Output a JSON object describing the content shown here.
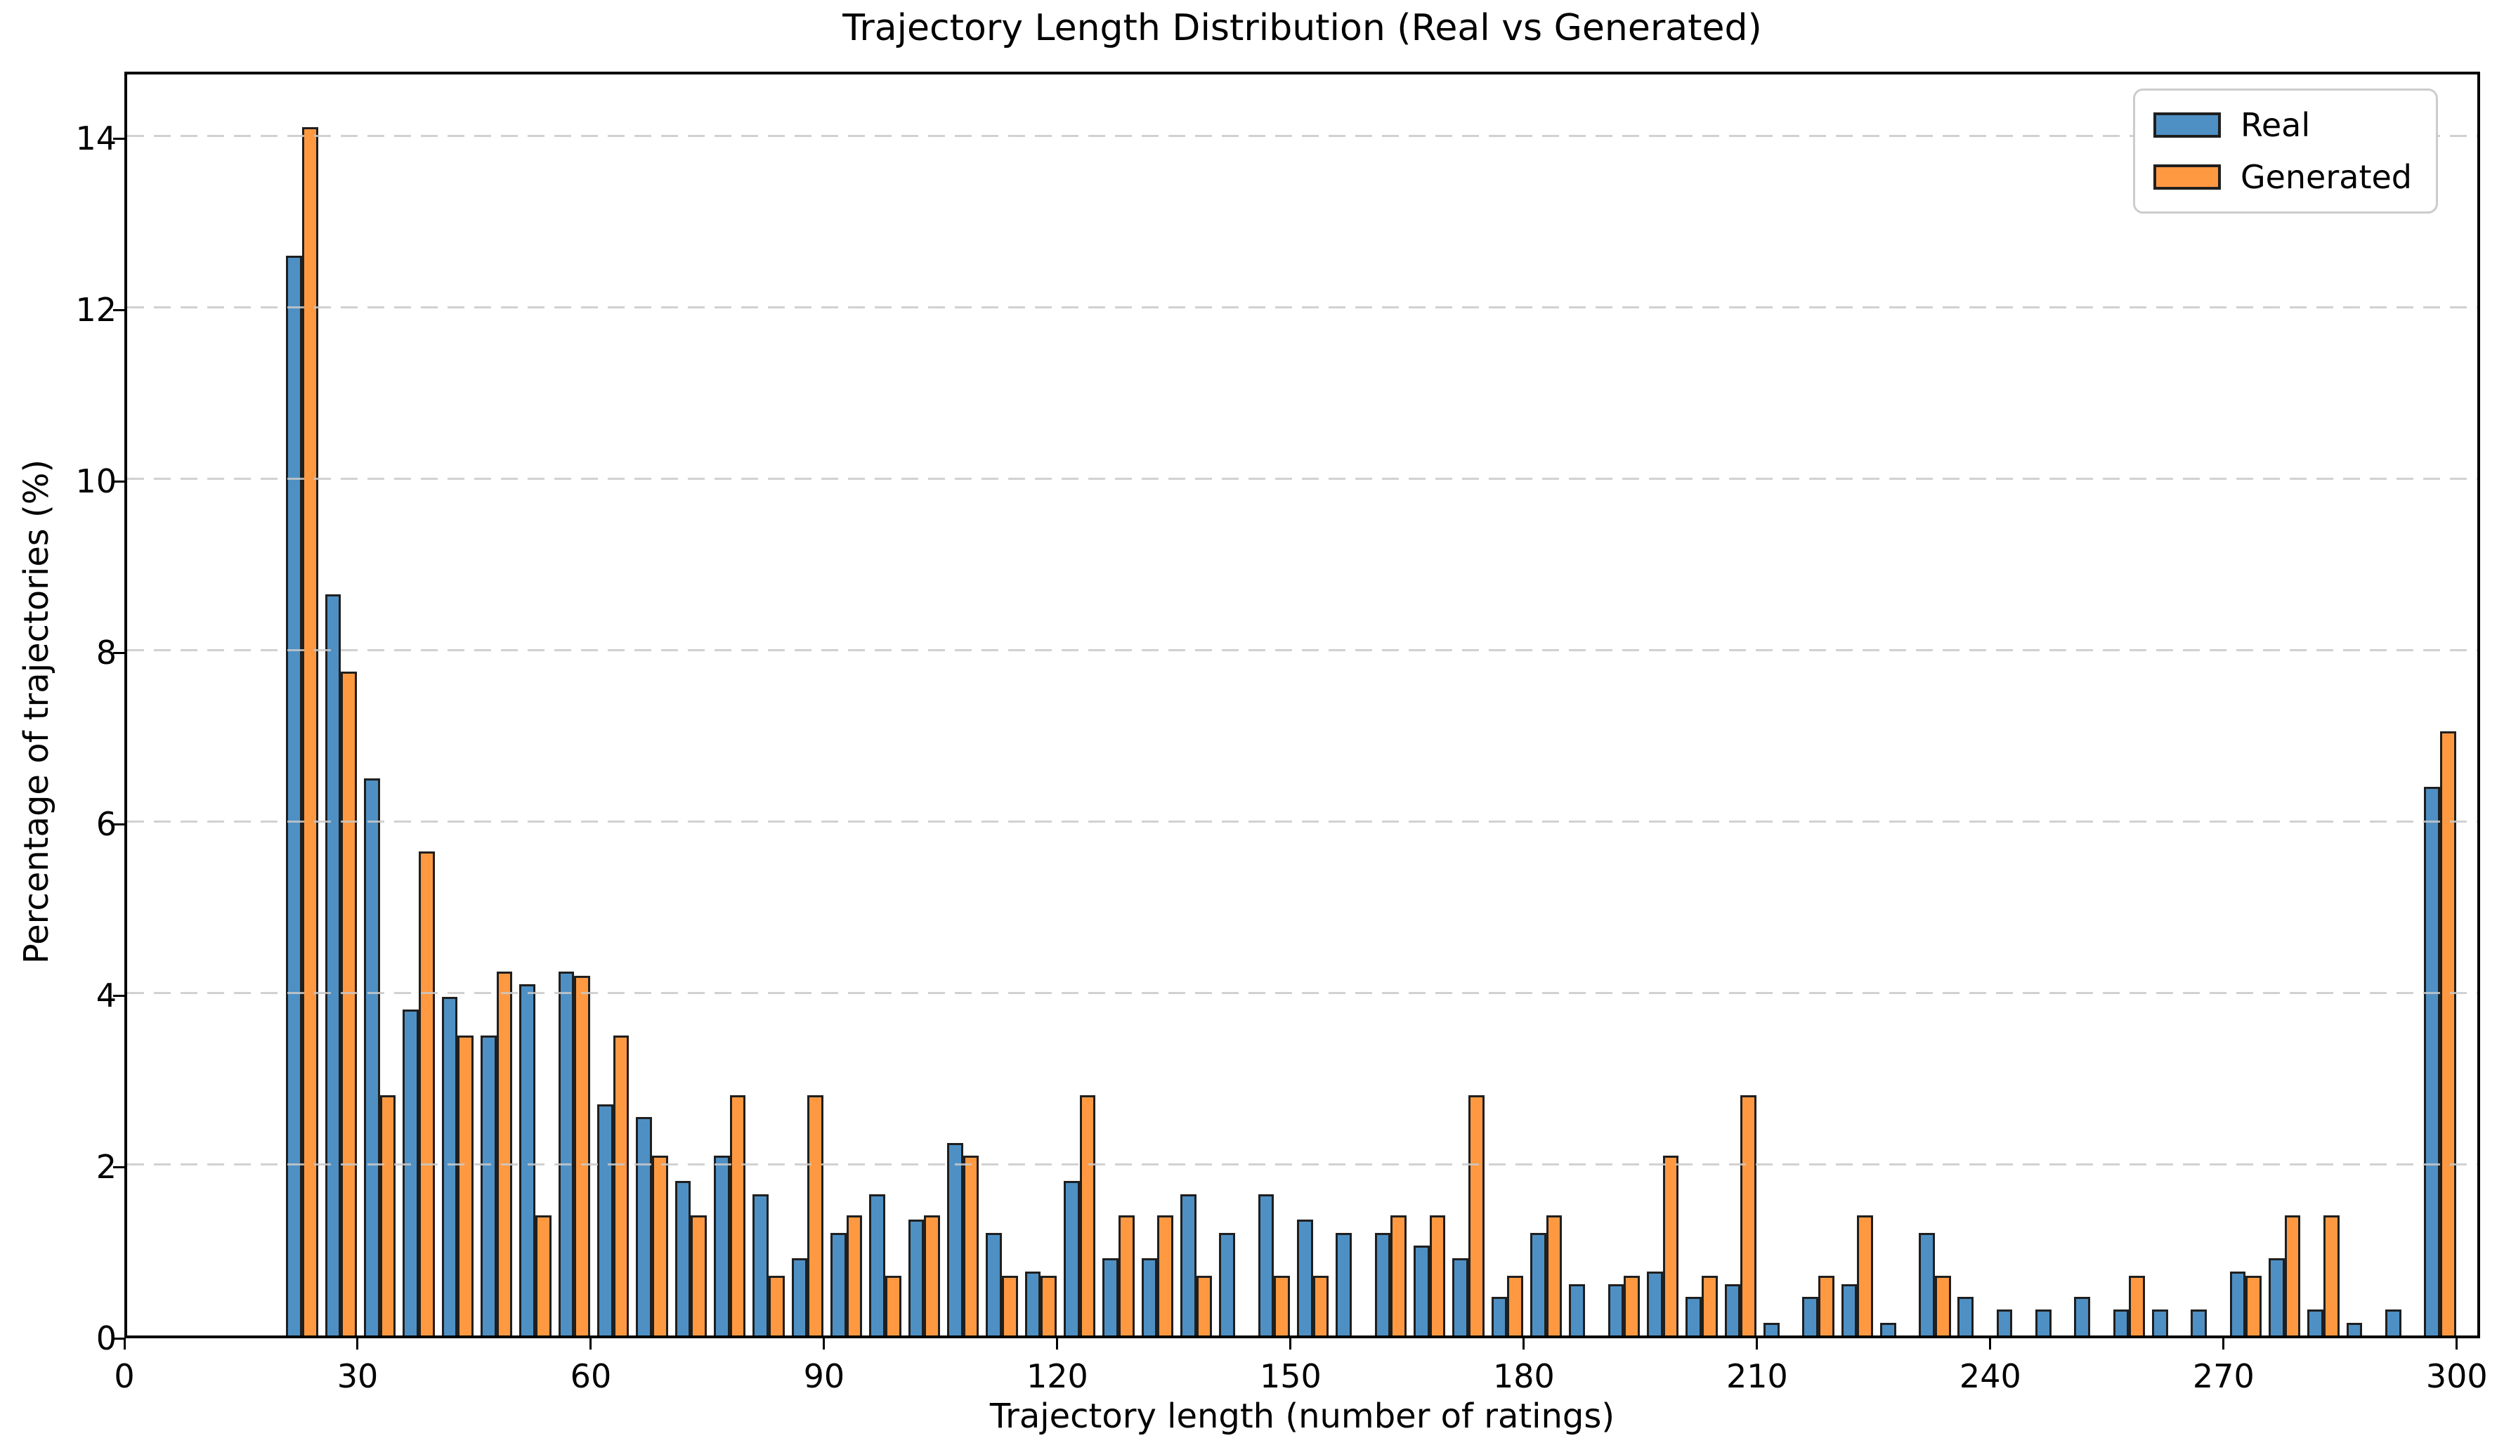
{
  "title": "Trajectory Length Distribution (Real vs Generated)",
  "xlabel": "Trajectory length (number of ratings)",
  "ylabel": "Percentage of trajectories (%)",
  "legend": [
    {
      "label": "Real",
      "color": "#4e90c4"
    },
    {
      "label": "Generated",
      "color": "#ff9941"
    }
  ],
  "colors": {
    "real": "#4e90c4",
    "generated": "#ff9941",
    "bar_edge": "#1f1f1f",
    "grid": "#c9c9c9",
    "spine": "#000000"
  },
  "chart_data": {
    "type": "bar",
    "subtype": "grouped-histogram",
    "bin_width": 5,
    "bin_starts": [
      20,
      25,
      30,
      35,
      40,
      45,
      50,
      55,
      60,
      65,
      70,
      75,
      80,
      85,
      90,
      95,
      100,
      105,
      110,
      115,
      120,
      125,
      130,
      135,
      140,
      145,
      150,
      155,
      160,
      165,
      170,
      175,
      180,
      185,
      190,
      195,
      200,
      205,
      210,
      215,
      220,
      225,
      230,
      235,
      240,
      245,
      250,
      255,
      260,
      265,
      270,
      275,
      280,
      285,
      290,
      295
    ],
    "series": [
      {
        "name": "Real",
        "values": [
          12.6,
          8.65,
          6.5,
          3.8,
          3.95,
          3.5,
          4.1,
          4.25,
          2.7,
          2.55,
          1.8,
          2.1,
          1.65,
          0.9,
          1.2,
          1.65,
          1.35,
          2.25,
          1.2,
          0.75,
          1.8,
          0.9,
          0.9,
          1.65,
          1.2,
          1.65,
          1.35,
          1.2,
          1.2,
          1.05,
          0.9,
          0.45,
          1.2,
          0.6,
          0.6,
          0.75,
          0.45,
          0.6,
          0.15,
          0.45,
          0.6,
          0.15,
          1.2,
          0.45,
          0.3,
          0.3,
          0.45,
          0.3,
          0.3,
          0.3,
          0.75,
          0.9,
          0.3,
          0.15,
          0.3,
          6.4
        ]
      },
      {
        "name": "Generated",
        "values": [
          14.1,
          7.75,
          2.8,
          5.65,
          3.5,
          4.25,
          1.4,
          4.2,
          3.5,
          2.1,
          1.4,
          2.8,
          0.7,
          2.8,
          1.4,
          0.7,
          1.4,
          2.1,
          0.7,
          0.7,
          2.8,
          1.4,
          1.4,
          0.7,
          0,
          0.7,
          0.7,
          0,
          1.4,
          1.4,
          2.8,
          0.7,
          1.4,
          0,
          0.7,
          2.1,
          0.7,
          2.8,
          0,
          0.7,
          1.4,
          0,
          0.7,
          0,
          0,
          0,
          0,
          0.7,
          0,
          0,
          0.7,
          1.4,
          1.4,
          0,
          0,
          7.05
        ]
      }
    ],
    "title": "Trajectory Length Distribution (Real vs Generated)",
    "xlabel": "Trajectory length (number of ratings)",
    "ylabel": "Percentage of trajectories (%)",
    "x_ticks": [
      0,
      30,
      60,
      90,
      120,
      150,
      180,
      210,
      240,
      270,
      300
    ],
    "y_ticks": [
      0,
      2,
      4,
      6,
      8,
      10,
      12,
      14
    ],
    "xlim": [
      0,
      303
    ],
    "ylim": [
      0,
      14.78
    ],
    "grid": "horizontal-dashed",
    "legend_position": "upper right"
  }
}
